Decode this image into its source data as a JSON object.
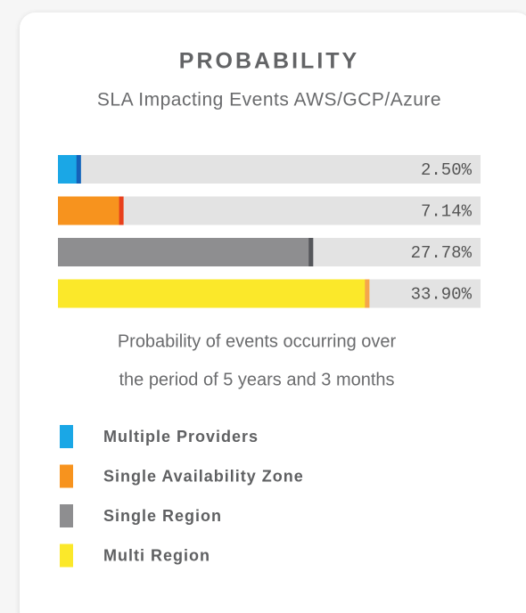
{
  "chart_data": {
    "type": "bar",
    "orientation": "horizontal",
    "title": "PROBABILITY",
    "subtitle": "SLA Impacting Events AWS/GCP/Azure",
    "categories": [
      "Multiple Providers",
      "Single Availability Zone",
      "Single Region",
      "Multi Region"
    ],
    "values": [
      2.5,
      7.14,
      27.78,
      33.9
    ],
    "value_labels": [
      "2.50%",
      "7.14%",
      "27.78%",
      "33.90%"
    ],
    "colors": [
      "#1aa7e6",
      "#f7931e",
      "#8e8e90",
      "#fbe82a"
    ],
    "edge_colors": [
      "#1661b8",
      "#e8401c",
      "#55575b",
      "#f5a54c"
    ],
    "track_color": "#e3e3e3",
    "xlim": [
      0,
      46
    ],
    "note": [
      "Probability of events occurring over",
      "the period of 5 years and 3 months"
    ],
    "legend": true
  }
}
